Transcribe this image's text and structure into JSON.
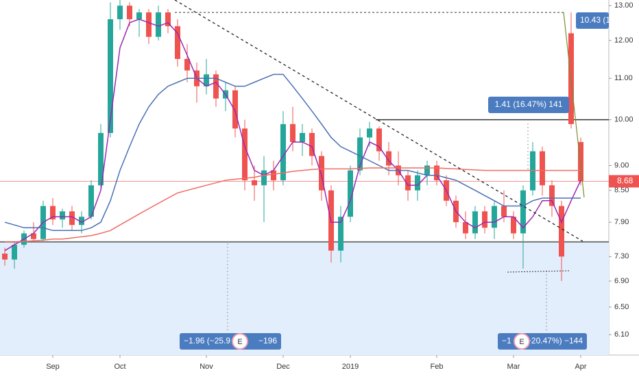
{
  "chart_data": {
    "type": "candlestick",
    "categories": [
      null,
      null,
      null,
      null,
      null,
      "Sep",
      null,
      null,
      null,
      null,
      null,
      null,
      "Oct",
      null,
      null,
      null,
      null,
      null,
      null,
      null,
      null,
      "Nov",
      null,
      null,
      null,
      null,
      null,
      null,
      null,
      "Dec",
      null,
      null,
      null,
      null,
      null,
      null,
      "2019",
      null,
      null,
      null,
      null,
      null,
      null,
      null,
      null,
      "Feb",
      null,
      null,
      null,
      null,
      null,
      null,
      null,
      "Mar",
      null,
      null,
      null,
      null,
      null,
      null,
      "Apr"
    ],
    "ohlc": [
      [
        7.35,
        7.45,
        7.15,
        7.25
      ],
      [
        7.25,
        7.55,
        7.1,
        7.5
      ],
      [
        7.5,
        7.75,
        7.45,
        7.7
      ],
      [
        7.7,
        7.9,
        7.55,
        7.6
      ],
      [
        7.6,
        8.3,
        7.55,
        8.2
      ],
      [
        8.2,
        8.35,
        7.85,
        7.95
      ],
      [
        7.95,
        8.15,
        7.8,
        8.1
      ],
      [
        8.1,
        8.2,
        7.75,
        7.85
      ],
      [
        7.85,
        8.1,
        7.7,
        8.0
      ],
      [
        8.0,
        8.7,
        7.95,
        8.6
      ],
      [
        8.6,
        9.9,
        8.5,
        9.7
      ],
      [
        9.7,
        13.1,
        9.6,
        12.6
      ],
      [
        12.6,
        13.2,
        12.3,
        13.0
      ],
      [
        13.0,
        13.1,
        12.4,
        12.6
      ],
      [
        12.6,
        12.9,
        12.1,
        12.8
      ],
      [
        12.8,
        12.9,
        11.9,
        12.1
      ],
      [
        12.1,
        13.0,
        12.0,
        12.8
      ],
      [
        12.8,
        12.9,
        12.2,
        12.4
      ],
      [
        12.4,
        12.6,
        11.3,
        11.5
      ],
      [
        11.5,
        11.9,
        10.9,
        11.2
      ],
      [
        11.2,
        11.4,
        10.4,
        10.8
      ],
      [
        10.8,
        11.5,
        10.6,
        11.1
      ],
      [
        11.1,
        11.2,
        10.3,
        10.5
      ],
      [
        10.5,
        10.9,
        10.2,
        10.7
      ],
      [
        10.7,
        10.8,
        9.6,
        9.8
      ],
      [
        9.8,
        10.0,
        8.5,
        8.7
      ],
      [
        8.7,
        9.0,
        8.3,
        8.6
      ],
      [
        8.6,
        9.2,
        7.9,
        8.9
      ],
      [
        8.9,
        9.1,
        8.5,
        8.7
      ],
      [
        8.7,
        10.2,
        8.6,
        9.9
      ],
      [
        9.9,
        10.3,
        9.3,
        9.5
      ],
      [
        9.5,
        9.9,
        9.2,
        9.7
      ],
      [
        9.7,
        9.8,
        9.0,
        9.2
      ],
      [
        9.2,
        9.3,
        8.3,
        8.5
      ],
      [
        8.5,
        8.6,
        7.2,
        7.4
      ],
      [
        7.4,
        8.2,
        7.2,
        8.0
      ],
      [
        8.0,
        9.0,
        7.9,
        8.9
      ],
      [
        8.9,
        9.8,
        8.8,
        9.6
      ],
      [
        9.6,
        9.95,
        9.4,
        9.8
      ],
      [
        9.8,
        9.85,
        9.1,
        9.3
      ],
      [
        9.3,
        9.5,
        8.8,
        9.0
      ],
      [
        9.0,
        9.3,
        8.6,
        8.8
      ],
      [
        8.8,
        8.9,
        8.3,
        8.5
      ],
      [
        8.5,
        8.9,
        8.3,
        8.8
      ],
      [
        8.8,
        9.1,
        8.6,
        9.0
      ],
      [
        9.0,
        9.1,
        8.6,
        8.7
      ],
      [
        8.7,
        8.8,
        8.2,
        8.3
      ],
      [
        8.3,
        8.4,
        7.8,
        7.9
      ],
      [
        7.9,
        8.1,
        7.6,
        7.7
      ],
      [
        7.7,
        8.2,
        7.6,
        8.1
      ],
      [
        8.1,
        8.2,
        7.7,
        7.8
      ],
      [
        7.8,
        8.3,
        7.6,
        8.2
      ],
      [
        8.2,
        8.5,
        7.9,
        8.0
      ],
      [
        8.0,
        8.1,
        7.6,
        7.7
      ],
      [
        7.7,
        8.6,
        7.1,
        8.5
      ],
      [
        8.5,
        9.5,
        8.4,
        9.3
      ],
      [
        9.3,
        9.4,
        8.4,
        8.6
      ],
      [
        8.6,
        8.7,
        8.0,
        8.2
      ],
      [
        8.2,
        8.3,
        6.9,
        7.3
      ],
      [
        12.2,
        12.8,
        9.8,
        9.9
      ],
      [
        9.5,
        9.6,
        8.6,
        8.68
      ]
    ],
    "up_color": "#26a69a",
    "down_color": "#ef5350",
    "lines": [
      {
        "color": "#9c27b0",
        "values": [
          7.4,
          7.5,
          7.6,
          7.7,
          7.9,
          8.0,
          8.0,
          8.0,
          7.9,
          8.0,
          8.5,
          10.0,
          11.8,
          12.5,
          12.6,
          12.5,
          12.4,
          12.5,
          12.2,
          11.6,
          11.0,
          10.8,
          10.9,
          10.6,
          10.2,
          9.4,
          8.9,
          8.8,
          8.9,
          9.2,
          9.5,
          9.5,
          9.4,
          8.8,
          7.9,
          7.9,
          8.3,
          9.0,
          9.5,
          9.4,
          9.1,
          8.9,
          8.6,
          8.6,
          8.8,
          8.8,
          8.5,
          8.1,
          7.9,
          7.8,
          7.9,
          7.9,
          8.0,
          8.0,
          7.8,
          8.0,
          8.3,
          8.3,
          7.9,
          8.3,
          8.7
        ]
      },
      {
        "color": "#4a6fb5",
        "values": [
          7.9,
          7.85,
          7.8,
          7.8,
          7.8,
          7.75,
          7.75,
          7.75,
          7.75,
          7.8,
          7.9,
          8.3,
          8.9,
          9.4,
          9.9,
          10.3,
          10.6,
          10.8,
          10.9,
          11.0,
          11.0,
          11.0,
          11.0,
          10.9,
          10.8,
          10.8,
          10.9,
          11.0,
          11.1,
          11.1,
          10.8,
          10.5,
          10.2,
          9.9,
          9.6,
          9.4,
          9.3,
          9.2,
          9.1,
          9.0,
          8.9,
          8.9,
          8.9,
          8.85,
          8.8,
          8.8,
          8.75,
          8.7,
          8.6,
          8.5,
          8.4,
          8.3,
          8.2,
          8.2,
          8.2,
          8.3,
          8.35,
          8.35,
          8.35,
          8.35,
          8.35
        ]
      },
      {
        "color": "#f06b63",
        "values": [
          7.55,
          7.55,
          7.56,
          7.57,
          7.58,
          7.6,
          7.6,
          7.62,
          7.64,
          7.66,
          7.7,
          7.75,
          7.85,
          7.95,
          8.05,
          8.15,
          8.25,
          8.35,
          8.45,
          8.5,
          8.55,
          8.6,
          8.65,
          8.7,
          8.72,
          8.74,
          8.76,
          8.8,
          8.82,
          8.85,
          8.88,
          8.9,
          8.92,
          8.93,
          8.93,
          8.93,
          8.93,
          8.94,
          8.95,
          8.95,
          8.95,
          8.95,
          8.95,
          8.95,
          8.95,
          8.95,
          8.94,
          8.93,
          8.92,
          8.91,
          8.9,
          8.9,
          8.9,
          8.9,
          8.9,
          8.9,
          8.9,
          8.9,
          8.9,
          8.9,
          8.9
        ]
      }
    ],
    "log_scale": true,
    "ylim": [
      5.82,
      13.17
    ],
    "yticks": [
      {
        "value": 13,
        "label": "13.00"
      },
      {
        "value": 12,
        "label": "12.00"
      },
      {
        "value": 11,
        "label": "11.00"
      },
      {
        "value": 10,
        "label": "10.00"
      },
      {
        "value": 9,
        "label": "9.00"
      },
      {
        "value": 8.5,
        "label": "8.50"
      },
      {
        "value": 7.9,
        "label": "7.90"
      },
      {
        "value": 7.3,
        "label": "7.30"
      },
      {
        "value": 6.9,
        "label": "6.90"
      },
      {
        "value": 6.5,
        "label": "6.50"
      },
      {
        "value": 6.1,
        "label": "6.10"
      }
    ],
    "last_price": 8.68,
    "levels": {
      "peak": 12.8,
      "resistance": 10.0,
      "support": 7.55
    },
    "annotations": [
      "10.43 (1",
      "1.41 (16.47%) 141",
      "−1.96 (−25.9",
      "−196",
      "−1",
      "−20.47%) −144"
    ],
    "badge": "E"
  }
}
